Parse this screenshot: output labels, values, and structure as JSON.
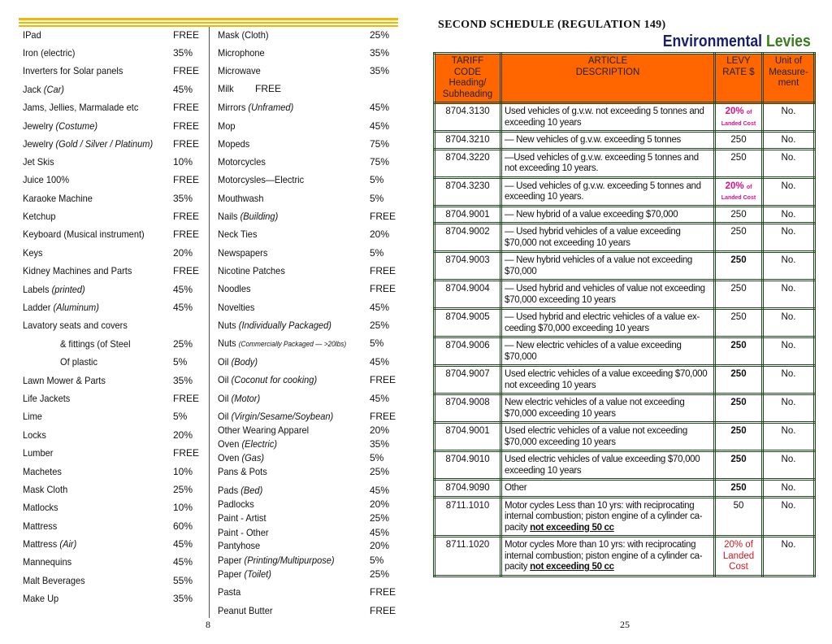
{
  "left_page": {
    "page_number": "8",
    "column1": [
      {
        "name": "IPad",
        "rate": "FREE"
      },
      {
        "name": "Iron (electric)",
        "rate": "35%"
      },
      {
        "name": "Inverters for Solar panels",
        "rate": "FREE"
      },
      {
        "name": "Jack",
        "qual": "(Car)",
        "rate": "45%"
      },
      {
        "name": "Jams, Jellies, Marmalade etc",
        "rate": "FREE"
      },
      {
        "name": "Jewelry",
        "qual": "(Costume)",
        "rate": "FREE"
      },
      {
        "name": "Jewelry",
        "qual": "(Gold / Silver / Platinum)",
        "rate": "FREE"
      },
      {
        "name": "Jet Skis",
        "rate": "10%"
      },
      {
        "name": "Juice 100%",
        "rate": "FREE"
      },
      {
        "name": "Karaoke Machine",
        "rate": "35%"
      },
      {
        "name": "Ketchup",
        "rate": "FREE"
      },
      {
        "name": "Keyboard (Musical instrument)",
        "rate": "FREE"
      },
      {
        "name": "Keys",
        "rate": "20%"
      },
      {
        "name": "Kidney Machines and Parts",
        "rate": "FREE"
      },
      {
        "name": "Labels",
        "qual": "(printed)",
        "rate": "45%"
      },
      {
        "name": "Ladder",
        "qual": "(Aluminum)",
        "rate": "45%"
      },
      {
        "name": "Lavatory seats and covers",
        "rate": ""
      },
      {
        "name": "& fittings (of Steel",
        "rate": "25%"
      },
      {
        "name": "Of plastic",
        "rate": "5%"
      },
      {
        "name": "Lawn Mower & Parts",
        "rate": "35%"
      },
      {
        "name": "Life Jackets",
        "rate": "FREE"
      },
      {
        "name": "Lime",
        "rate": "5%"
      },
      {
        "name": "Locks",
        "rate": "20%"
      },
      {
        "name": "Lumber",
        "rate": "FREE"
      },
      {
        "name": "Machetes",
        "rate": "10%"
      },
      {
        "name": "Mask Cloth",
        "rate": "25%"
      },
      {
        "name": "Matlocks",
        "rate": "10%"
      },
      {
        "name": "Mattress",
        "rate": "60%"
      },
      {
        "name": "Mattress",
        "qual": "(Air)",
        "rate": "45%"
      },
      {
        "name": "Mannequins",
        "rate": "45%"
      },
      {
        "name": "Malt Beverages",
        "rate": "55%"
      },
      {
        "name": "Make Up",
        "rate": "35%"
      }
    ],
    "column2": [
      {
        "name": "Mask (Cloth)",
        "rate": "25%"
      },
      {
        "name": "Microphone",
        "rate": "35%"
      },
      {
        "name": "Microwave",
        "rate": "35%"
      },
      {
        "name": "Milk",
        "rate": "FREE"
      },
      {
        "name": "Mirrors",
        "qual": "(Unframed)",
        "rate": "45%"
      },
      {
        "name": "Mop",
        "rate": "45%"
      },
      {
        "name": "Mopeds",
        "rate": "75%"
      },
      {
        "name": "Motorcycles",
        "rate": "75%"
      },
      {
        "name": "Motorcysles—Electric",
        "rate": "5%"
      },
      {
        "name": "Mouthwash",
        "rate": "5%"
      },
      {
        "name": "Nails",
        "qual": "(Building)",
        "rate": "FREE"
      },
      {
        "name": "Neck Ties",
        "rate": "20%"
      },
      {
        "name": "Newspapers",
        "rate": "5%"
      },
      {
        "name": "Nicotine Patches",
        "rate": "FREE"
      },
      {
        "name": "Noodles",
        "rate": "FREE"
      },
      {
        "name": "Novelties",
        "rate": "45%"
      },
      {
        "name": "Nuts",
        "qual": "(Individually Packaged)",
        "rate": "25%"
      },
      {
        "name": "Nuts",
        "qual_small": "(Commercially Packaged — >20lbs)",
        "rate": "5%"
      },
      {
        "name": "Oil",
        "qual": "(Body)",
        "rate": "45%"
      },
      {
        "name": "Oil",
        "qual": "(Coconut for cooking)",
        "rate": "FREE"
      },
      {
        "name": "Oil",
        "qual": "(Motor)",
        "rate": "45%"
      },
      {
        "name": "Oil",
        "qual": "(Virgin/Sesame/Soybean)",
        "rate": "FREE"
      },
      {
        "name": "Other Wearing Apparel",
        "rate": "20%"
      },
      {
        "name": "Oven",
        "qual": "(Electric)",
        "rate": "35%"
      },
      {
        "name": "Oven",
        "qual": "(Gas)",
        "rate": "5%"
      },
      {
        "name": "Pans & Pots",
        "rate": "25%"
      },
      {
        "name": "Pads",
        "qual": "(Bed)",
        "rate": "45%"
      },
      {
        "name": "Padlocks",
        "rate": "20%"
      },
      {
        "name": "Paint - Artist",
        "rate": "25%"
      },
      {
        "name": "Paint - Other",
        "rate": "45%"
      },
      {
        "name": "Pantyhose",
        "rate": "20%"
      },
      {
        "name": "Paper",
        "qual": "(Printing/Multipurpose)",
        "rate": "5%"
      },
      {
        "name": "Paper",
        "qual": "(Toilet)",
        "rate": "25%"
      },
      {
        "name": "Pasta",
        "rate": "FREE"
      },
      {
        "name": "Peanut Butter",
        "rate": "FREE"
      }
    ]
  },
  "right_page": {
    "schedule_title": "SECOND SCHEDULE (REGULATION 149)",
    "heading_part1": "Environmental",
    "heading_part2": "Levies",
    "page_number": "25",
    "colors": {
      "header_bg": "#ff6600",
      "border": "#1d4a1d",
      "landed_cost_pink": "#e0108a",
      "landed_cost_red": "#d0181e"
    },
    "columns": [
      [
        "TARIFF CODE",
        "Heading/",
        "Subheading"
      ],
      [
        "ARTICLE",
        "DESCRIPTION"
      ],
      [
        "LEVY",
        "RATE $"
      ],
      [
        "Unit of",
        "Measure-",
        "ment"
      ]
    ],
    "rows": [
      {
        "code": "8704.3130",
        "desc": "Used vehicles of g.v.w. not exceeding 5 tonnes and exceeding 10 years",
        "levy": "20%",
        "levy_note": "of",
        "levy_note2": "Landed Cost",
        "style": "pink",
        "unit": "No."
      },
      {
        "code": "8704.3210",
        "desc": "— New vehicles of g.v.w. exceeding 5 tonnes",
        "levy": "250",
        "unit": "No."
      },
      {
        "code": "8704.3220",
        "desc": "—Used vehicles of g.v.w. exceeding 5 tonnes and not exceeding 10 years.",
        "levy": "250",
        "unit": "No."
      },
      {
        "code": "8704.3230",
        "desc": "— Used vehicles of g.v.w. exceeding 5 tonnes and exceeding 10 years.",
        "levy": "20%",
        "levy_note": "of",
        "levy_note2": "Landed Cost",
        "style": "pink",
        "unit": "No."
      },
      {
        "code": "8704.9001",
        "desc": "— New hybrid of a value exceeding $70,000",
        "levy": "250",
        "unit": "No."
      },
      {
        "code": "8704.9002",
        "desc": "— Used hybrid  vehicles of a value exceeding $70,000 not exceeding 10 years",
        "levy": "250",
        "unit": "No."
      },
      {
        "code": "8704.9003",
        "desc": "— New  hybrid vehicles of a value not  exceeding $70,000",
        "levy": "250",
        "style": "bold",
        "unit": "No."
      },
      {
        "code": "8704.9004",
        "desc": "— Used hybrid and vehicles of value not exceeding $70,000 exceeding 10 years",
        "levy": "250",
        "unit": "No."
      },
      {
        "code": "8704.9005",
        "desc": "— Used hybrid and electric vehicles of a value ex-ceeding $70,000  exceeding 10 years",
        "levy": "250",
        "unit": "No."
      },
      {
        "code": "8704.9006",
        "desc": "— New electric vehicles of a value exceeding $70,000",
        "levy": "250",
        "style": "bold",
        "unit": "No."
      },
      {
        "code": "8704.9007",
        "desc": "Used electric vehicles of a value exceeding $70,000 not exceeding 10 years",
        "levy": "250",
        "style": "bold",
        "unit": "No."
      },
      {
        "code": "8704.9008",
        "desc": "New electric vehicles of a value not exceeding $70,000 exceeding 10 years",
        "levy": "250",
        "style": "bold",
        "unit": "No."
      },
      {
        "code": "8704.9001",
        "desc": "Used electric vehicles of a value not exceeding $70,000 exceeding 10 years",
        "levy": "250",
        "style": "bold",
        "unit": "No."
      },
      {
        "code": "8704.9010",
        "desc": "Used electric vehicles of value exceeding $70,000 exceeding 10 years",
        "levy": "250",
        "style": "bold",
        "unit": "No."
      },
      {
        "code": "8704.9090",
        "desc": "Other",
        "levy": "250",
        "style": "bold",
        "unit": "No."
      },
      {
        "code": "8711.1010",
        "desc": "Motor cycles Less than 10 yrs: with reciprocating internal combustion; piston engine of a cylinder ca-pacity",
        "desc_emph": "not exceeding   50 cc",
        "levy": "50",
        "unit": "No."
      },
      {
        "code": "8711.1020",
        "desc": "Motor cycles More than 10 yrs: with reciprocating internal combustion; piston engine of a cylinder ca-pacity",
        "desc_emph": "not exceeding   50 cc",
        "levy": "20% of Landed Cost",
        "style": "red",
        "unit": "No."
      }
    ]
  }
}
